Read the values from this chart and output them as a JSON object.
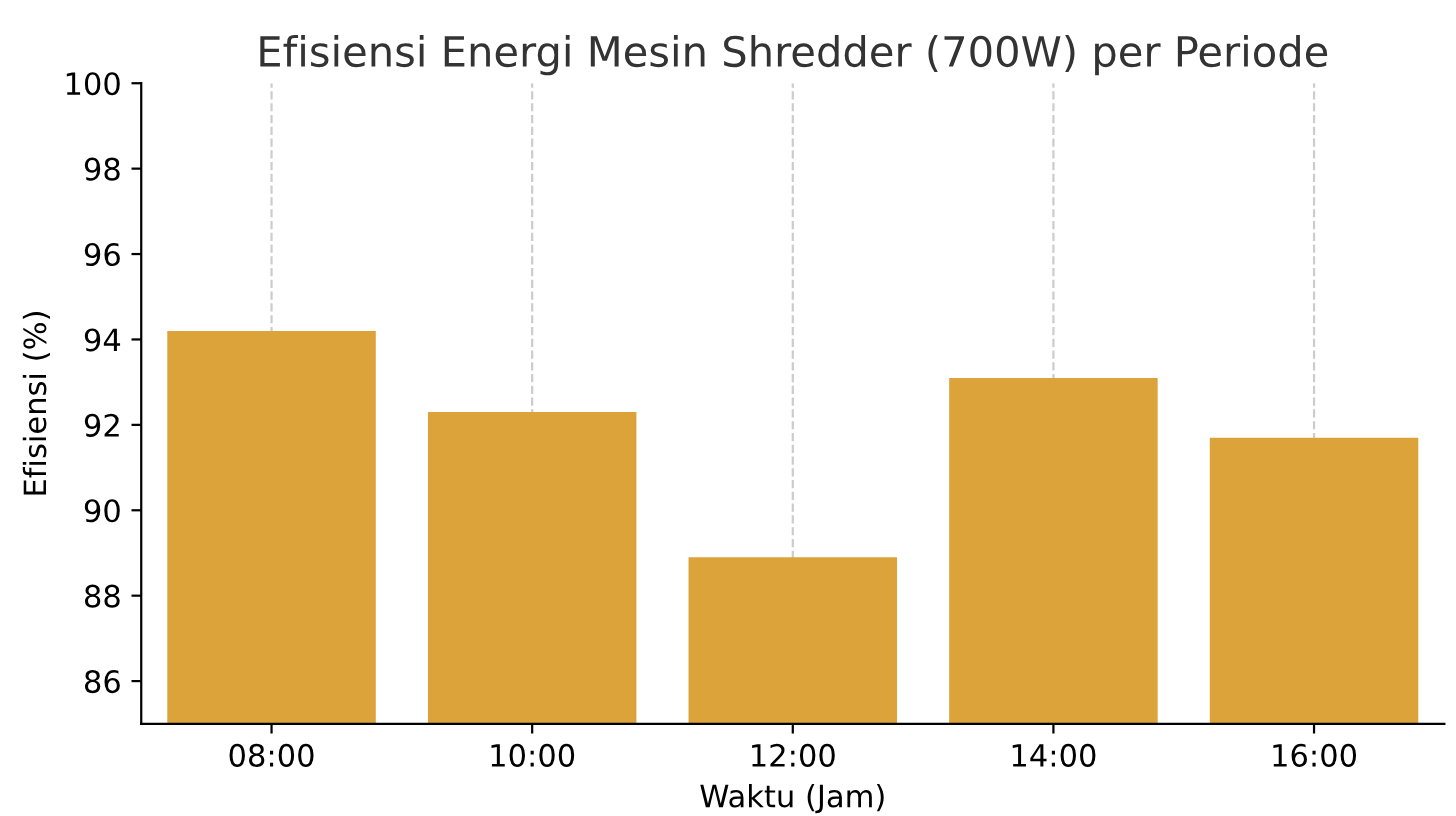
{
  "chart_data": {
    "type": "bar",
    "title": "Efisiensi Energi Mesin Shredder (700W) per Periode",
    "xlabel": "Waktu (Jam)",
    "ylabel": "Efisiensi (%)",
    "categories": [
      "08:00",
      "10:00",
      "12:00",
      "14:00",
      "16:00"
    ],
    "values": [
      94.2,
      92.3,
      88.9,
      93.1,
      91.7
    ],
    "color": "#dba33a",
    "ylim": [
      85,
      100
    ],
    "yticks": [
      86,
      88,
      90,
      92,
      94,
      96,
      98,
      100
    ],
    "grid": "x"
  }
}
